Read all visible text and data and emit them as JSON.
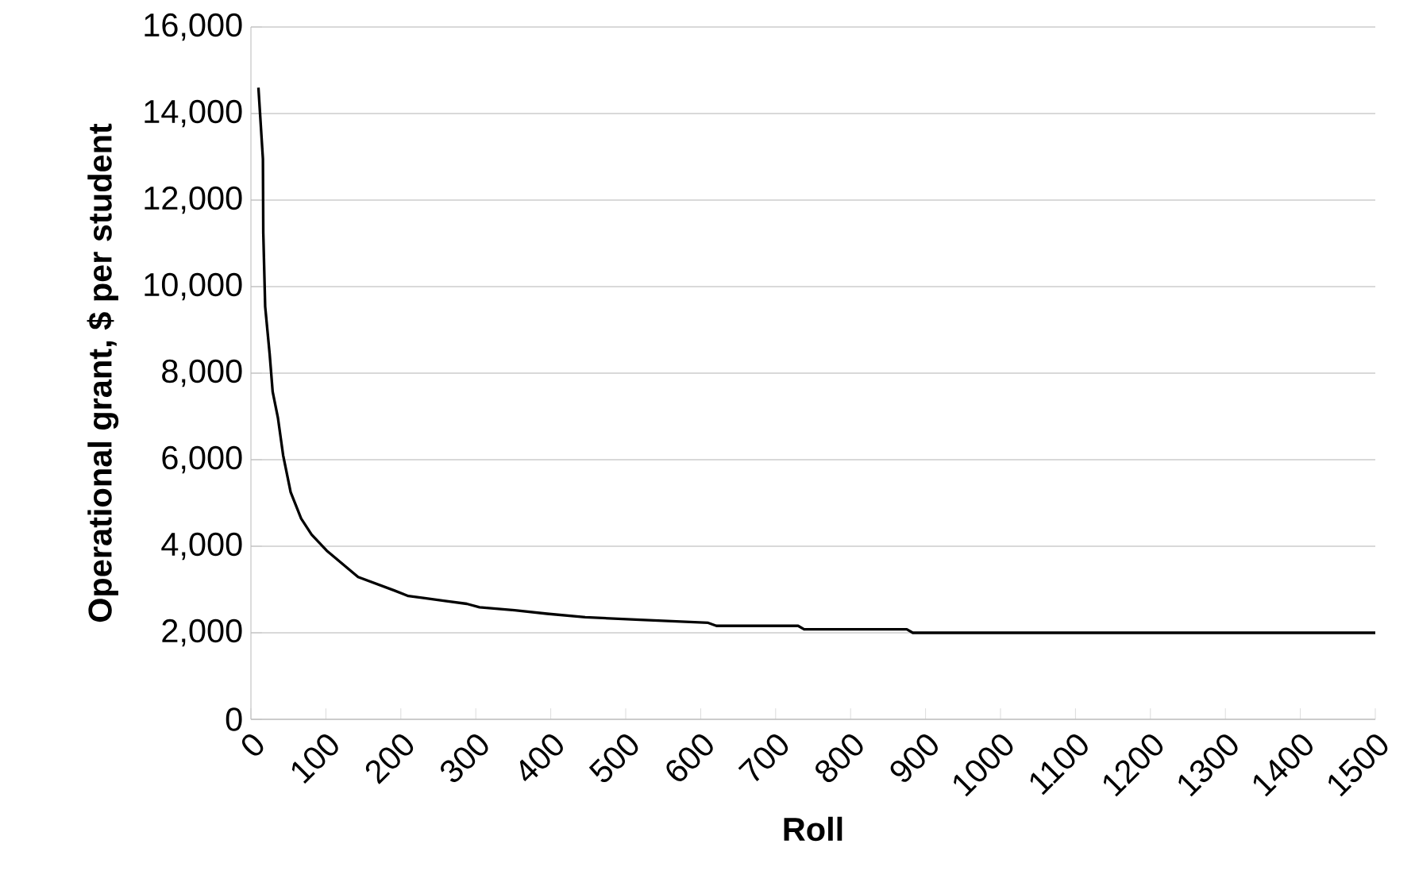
{
  "chart_data": {
    "type": "line",
    "xlabel": "Roll",
    "ylabel": "Operational grant, $ per student",
    "x": [
      10,
      16,
      16.5,
      19,
      25,
      29,
      36,
      43,
      53,
      67,
      81,
      101,
      143,
      191,
      210,
      232,
      257,
      288,
      305,
      352,
      395,
      446,
      519,
      610,
      621,
      730,
      738,
      875,
      883,
      1500
    ],
    "series": [
      {
        "color": "#000000",
        "values": [
          14600,
          12950,
          11240,
          9540,
          8440,
          7570,
          6970,
          6100,
          5250,
          4640,
          4270,
          3900,
          3290,
          2980,
          2850,
          2800,
          2740,
          2670,
          2590,
          2520,
          2440,
          2360,
          2300,
          2230,
          2160,
          2160,
          2080,
          2080,
          2000,
          2000
        ]
      }
    ],
    "xlim": [
      0,
      1500
    ],
    "xticks": [
      0,
      100,
      200,
      300,
      400,
      500,
      600,
      700,
      800,
      900,
      1000,
      1100,
      1200,
      1300,
      1400,
      1500
    ],
    "ylim": [
      0,
      16000
    ],
    "yticks": [
      {
        "value": 0,
        "label": "0"
      },
      {
        "value": 2000,
        "label": "2,000"
      },
      {
        "value": 4000,
        "label": "4,000"
      },
      {
        "value": 6000,
        "label": "6,000"
      },
      {
        "value": 8000,
        "label": "8,000"
      },
      {
        "value": 10000,
        "label": "10,000"
      },
      {
        "value": 12000,
        "label": "12,000"
      },
      {
        "value": 14000,
        "label": "14,000"
      },
      {
        "value": 16000,
        "label": "16,000"
      }
    ],
    "grid": "y",
    "marker": "none",
    "line_style": "solid"
  }
}
